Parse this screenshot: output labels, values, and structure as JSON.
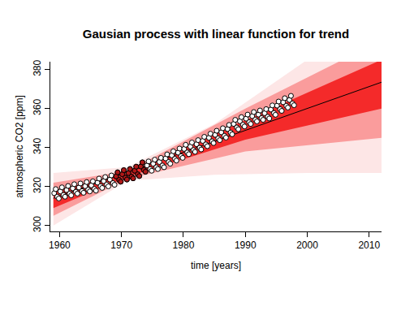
{
  "chart_data": {
    "type": "scatter",
    "title": "Gausian process with linear function for trend",
    "x_label": "time [years]",
    "y_label": "atmospheric CO2 [ppm]",
    "xlim": [
      1958.5,
      2012
    ],
    "ylim": [
      297,
      384
    ],
    "xticks": [
      1960,
      1970,
      1980,
      1990,
      2000,
      2010
    ],
    "yticks": [
      300,
      320,
      340,
      360,
      380
    ],
    "grid": false,
    "series": [
      {
        "type": "band",
        "color": "#fde6e6",
        "x": [
          1959,
          1971,
          1985,
          2000,
          2012
        ],
        "lower": [
          300,
          323,
          326,
          327,
          327
        ],
        "upper": [
          327,
          330,
          352,
          385,
          400
        ]
      },
      {
        "type": "band",
        "color": "#fa9c9c",
        "x": [
          1959,
          1971,
          1990,
          2012
        ],
        "lower": [
          305,
          324,
          338,
          345
        ],
        "upper": [
          322,
          328,
          360,
          395
        ]
      },
      {
        "type": "band",
        "color": "#f42a2a",
        "x": [
          1959,
          1971,
          1990,
          2012
        ],
        "lower": [
          309,
          325,
          344,
          360
        ],
        "upper": [
          318,
          327,
          354,
          385
        ]
      },
      {
        "type": "line",
        "color": "#000000",
        "line_style": "solid",
        "x": [
          1959,
          2012
        ],
        "values": [
          314,
          373.5
        ]
      },
      {
        "type": "scatter",
        "color": "#ffffff",
        "marker": "circle",
        "x": [
          1959.12,
          1959.37,
          1959.62,
          1959.87,
          1960.12,
          1960.37,
          1960.62,
          1960.87,
          1961.12,
          1961.37,
          1961.62,
          1961.87,
          1962.12,
          1962.37,
          1962.62,
          1962.87,
          1963.12,
          1963.37,
          1963.62,
          1963.87,
          1964.12,
          1964.37,
          1964.62,
          1964.87,
          1965.12,
          1965.37,
          1965.62,
          1965.87,
          1966.12,
          1966.37,
          1966.62,
          1966.87,
          1967.12,
          1967.37,
          1967.62,
          1967.87,
          1968.12,
          1968.37,
          1968.62,
          1968.87,
          1969.12,
          1969.37,
          1969.62,
          1969.87,
          1970.12,
          1970.37,
          1970.62,
          1970.87,
          1971.12,
          1971.37,
          1971.62,
          1971.87,
          1972.12,
          1972.37,
          1972.62,
          1972.87,
          1973.12,
          1973.37,
          1973.62,
          1973.87,
          1974.12,
          1974.37,
          1974.62,
          1974.87,
          1975.12,
          1975.37,
          1975.62,
          1975.87,
          1976.12,
          1976.37,
          1976.62,
          1976.87,
          1977.12,
          1977.37,
          1977.62,
          1977.87,
          1978.12,
          1978.37,
          1978.62,
          1978.87,
          1979.12,
          1979.37,
          1979.62,
          1979.87,
          1980.12,
          1980.37,
          1980.62,
          1980.87,
          1981.12,
          1981.37,
          1981.62,
          1981.87,
          1982.12,
          1982.37,
          1982.62,
          1982.87,
          1983.12,
          1983.37,
          1983.62,
          1983.87,
          1984.12,
          1984.37,
          1984.62,
          1984.87,
          1985.12,
          1985.37,
          1985.62,
          1985.87,
          1986.12,
          1986.37,
          1986.62,
          1986.87,
          1987.12,
          1987.37,
          1987.62,
          1987.87,
          1988.12,
          1988.37,
          1988.62,
          1988.87,
          1989.12,
          1989.37,
          1989.62,
          1989.87,
          1990.12,
          1990.37,
          1990.62,
          1990.87,
          1991.12,
          1991.37,
          1991.62,
          1991.87,
          1992.12,
          1992.37,
          1992.62,
          1992.87,
          1993.12,
          1993.37,
          1993.62,
          1993.87,
          1994.12,
          1994.37,
          1994.62,
          1994.87,
          1995.12,
          1995.37,
          1995.62,
          1995.87,
          1996.12,
          1996.37,
          1996.62,
          1996.87,
          1997.12,
          1997.37,
          1997.62,
          1997.87
        ],
        "values": [
          316.6,
          318.7,
          314.8,
          313.9,
          317.5,
          319.6,
          315.7,
          314.8,
          318.2,
          320.3,
          316.4,
          315.5,
          319.1,
          321.2,
          317.3,
          316.4,
          319.5,
          321.6,
          317.7,
          316.8,
          320.2,
          322.3,
          318.4,
          317.5,
          320.6,
          322.7,
          318.8,
          317.9,
          322.0,
          324.1,
          320.2,
          319.3,
          322.8,
          324.9,
          321.0,
          320.1,
          323.6,
          325.7,
          321.8,
          320.9,
          325.2,
          327.3,
          323.4,
          322.5,
          326.3,
          328.4,
          324.5,
          323.6,
          326.9,
          329.0,
          325.1,
          324.2,
          328.1,
          330.2,
          326.3,
          325.4,
          330.3,
          332.4,
          328.5,
          327.6,
          330.8,
          332.9,
          329.0,
          328.1,
          331.7,
          333.8,
          329.9,
          329.0,
          332.6,
          334.7,
          330.8,
          329.9,
          334.4,
          336.5,
          332.6,
          331.7,
          336.0,
          338.1,
          334.2,
          333.3,
          337.4,
          339.5,
          335.6,
          334.7,
          339.3,
          341.4,
          337.5,
          336.6,
          340.5,
          342.6,
          338.7,
          337.8,
          341.7,
          343.8,
          339.9,
          339.0,
          343.4,
          345.5,
          341.6,
          340.7,
          345.0,
          347.1,
          343.2,
          342.3,
          346.5,
          348.6,
          344.7,
          343.8,
          347.8,
          349.9,
          346.0,
          345.1,
          349.5,
          351.6,
          347.7,
          346.8,
          352.1,
          354.2,
          350.3,
          349.4,
          353.5,
          355.6,
          351.7,
          350.8,
          354.8,
          356.9,
          353.0,
          352.1,
          356.1,
          358.2,
          354.3,
          353.4,
          356.9,
          359.0,
          355.1,
          354.2,
          357.6,
          359.7,
          355.8,
          354.9,
          359.5,
          361.6,
          357.7,
          356.8,
          361.5,
          363.6,
          359.7,
          358.8,
          363.2,
          365.3,
          361.4,
          360.5,
          364.4,
          366.5,
          362.6,
          361.7
        ]
      },
      {
        "type": "scatter",
        "color": "#b01818",
        "marker": "circle",
        "x": [
          1969.12,
          1969.37,
          1969.62,
          1969.87,
          1970.12,
          1970.37,
          1970.62,
          1970.87,
          1971.12,
          1971.37,
          1971.62,
          1971.87,
          1972.12,
          1972.37,
          1972.62,
          1972.87,
          1973.12,
          1973.37,
          1973.62,
          1973.87
        ],
        "values": [
          325.2,
          327.3,
          323.4,
          322.5,
          326.3,
          328.4,
          324.5,
          323.6,
          326.9,
          329.0,
          325.1,
          324.2,
          328.1,
          330.2,
          326.3,
          325.4,
          330.3,
          332.4,
          328.5,
          327.6
        ]
      }
    ]
  }
}
